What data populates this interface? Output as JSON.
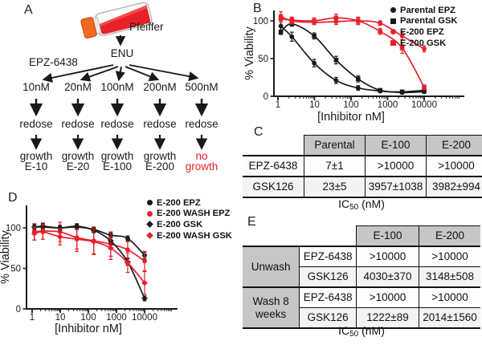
{
  "panelA": {
    "label": "A",
    "flask_label": "Pfeiffer",
    "mutagen": "ENU",
    "drug": "EPZ-6438",
    "branches": [
      {
        "dose": "10nM",
        "step": "redose",
        "outcome_line1": "growth",
        "outcome_line2": "E-10",
        "outcome_color": "#1a1a1a"
      },
      {
        "dose": "20nM",
        "step": "redose",
        "outcome_line1": "growth",
        "outcome_line2": "E-20",
        "outcome_color": "#1a1a1a"
      },
      {
        "dose": "100nM",
        "step": "redose",
        "outcome_line1": "growth",
        "outcome_line2": "E-100",
        "outcome_color": "#1a1a1a"
      },
      {
        "dose": "200nM",
        "step": "redose",
        "outcome_line1": "growth",
        "outcome_line2": "E-200",
        "outcome_color": "#1a1a1a"
      },
      {
        "dose": "500nM",
        "step": "redose",
        "outcome_line1": "no",
        "outcome_line2": "growth",
        "outcome_color": "#e8202a"
      }
    ]
  },
  "chart_data": [
    {
      "panel": "B",
      "type": "line",
      "xscale": "log",
      "xlabel": "[Inhibitor nM]",
      "ylabel": "% Viability",
      "x": [
        1.2,
        2.4,
        9.8,
        39,
        156,
        625,
        2500,
        10000
      ],
      "xticklabels": [
        "1",
        "10",
        "100",
        "1000",
        "10000"
      ],
      "yticks": [
        0,
        50,
        100
      ],
      "ylim": [
        0,
        115
      ],
      "legend_position": "top-right",
      "series": [
        {
          "name": "Parental EPZ",
          "color": "#1a1a1a",
          "marker": "circle",
          "values": [
            93,
            79,
            44,
            21,
            11,
            7,
            5,
            6
          ],
          "errors": [
            8,
            6,
            5,
            4,
            3,
            2,
            2,
            2
          ]
        },
        {
          "name": "Parental GSK",
          "color": "#1a1a1a",
          "marker": "square",
          "values": [
            85,
            96,
            80,
            48,
            23,
            8,
            6,
            8
          ],
          "errors": [
            3,
            3,
            4,
            5,
            4,
            2,
            2,
            2
          ]
        },
        {
          "name": "E-200 EPZ",
          "color": "#e8202a",
          "marker": "circle",
          "values": [
            106,
            100,
            98,
            99,
            100,
            97,
            80,
            63
          ],
          "errors": [
            6,
            4,
            3,
            4,
            4,
            3,
            5,
            4
          ]
        },
        {
          "name": "E-200 GSK",
          "color": "#e8202a",
          "marker": "square",
          "values": [
            103,
            101,
            100,
            104,
            100,
            86,
            64,
            12
          ],
          "errors": [
            5,
            4,
            4,
            5,
            5,
            4,
            7,
            3
          ]
        }
      ]
    },
    {
      "panel": "D",
      "type": "line",
      "xscale": "log",
      "xlabel": "[Inhibitor nM]",
      "ylabel": "% Viability",
      "x": [
        1.2,
        2.4,
        9.8,
        39,
        156,
        625,
        2500,
        10000
      ],
      "xticklabels": [
        "1",
        "10",
        "100",
        "1000",
        "10000"
      ],
      "yticks": [
        0,
        50,
        100
      ],
      "ylim": [
        0,
        120
      ],
      "legend_position": "top-right",
      "series": [
        {
          "name": "E-200 EPZ",
          "color": "#1a1a1a",
          "marker": "circle",
          "values": [
            101,
            101,
            100,
            101,
            98,
            91,
            87,
            66
          ],
          "errors": [
            4,
            3,
            3,
            3,
            3,
            3,
            3,
            4
          ]
        },
        {
          "name": "E-200 WASH EPZ",
          "color": "#e8202a",
          "marker": "circle",
          "values": [
            95,
            96,
            95,
            88,
            84,
            80,
            73,
            59
          ],
          "errors": [
            10,
            10,
            12,
            17,
            17,
            15,
            10,
            12
          ]
        },
        {
          "name": "E-200 GSK",
          "color": "#1a1a1a",
          "marker": "diamond",
          "values": [
            101,
            102,
            100,
            102,
            97,
            84,
            58,
            13
          ],
          "errors": [
            3,
            3,
            3,
            3,
            3,
            4,
            4,
            3
          ]
        },
        {
          "name": "E-200 WASH GSK",
          "color": "#e8202a",
          "marker": "diamond",
          "values": [
            93,
            95,
            89,
            86,
            83,
            75,
            57,
            32
          ],
          "errors": [
            8,
            9,
            10,
            12,
            15,
            14,
            12,
            14
          ]
        }
      ]
    }
  ],
  "panelC": {
    "label": "C",
    "table": {
      "col_headers": [
        "Parental",
        "E-100",
        "E-200"
      ],
      "rows": [
        {
          "label": "EPZ-6438",
          "values": [
            "7±1",
            ">10000",
            ">10000"
          ]
        },
        {
          "label": "GSK126",
          "values": [
            "23±5",
            "3957±1038",
            "3982±994"
          ]
        }
      ]
    },
    "caption": {
      "prefix": "IC",
      "sub": "50",
      "suffix": " (nM)"
    }
  },
  "panelE": {
    "label": "E",
    "table": {
      "col_headers": [
        "E-100",
        "E-200"
      ],
      "groups": [
        {
          "label": "Unwash",
          "rows": [
            {
              "label": "EPZ-6438",
              "values": [
                ">10000",
                ">10000"
              ]
            },
            {
              "label": "GSK126",
              "values": [
                "4030±370",
                "3148±508"
              ]
            }
          ]
        },
        {
          "label": "Wash 8 weeks",
          "rows": [
            {
              "label": "EPZ-6438",
              "values": [
                ">10000",
                ">10000"
              ]
            },
            {
              "label": "GSK126",
              "values": [
                "1222±89",
                "2014±1560"
              ]
            }
          ]
        }
      ]
    },
    "caption": {
      "prefix": "IC",
      "sub": "50",
      "suffix": " (nM)"
    }
  },
  "colors": {
    "red": "#e8202a",
    "black": "#1a1a1a",
    "table_header_gray": "#c6c6c6"
  }
}
